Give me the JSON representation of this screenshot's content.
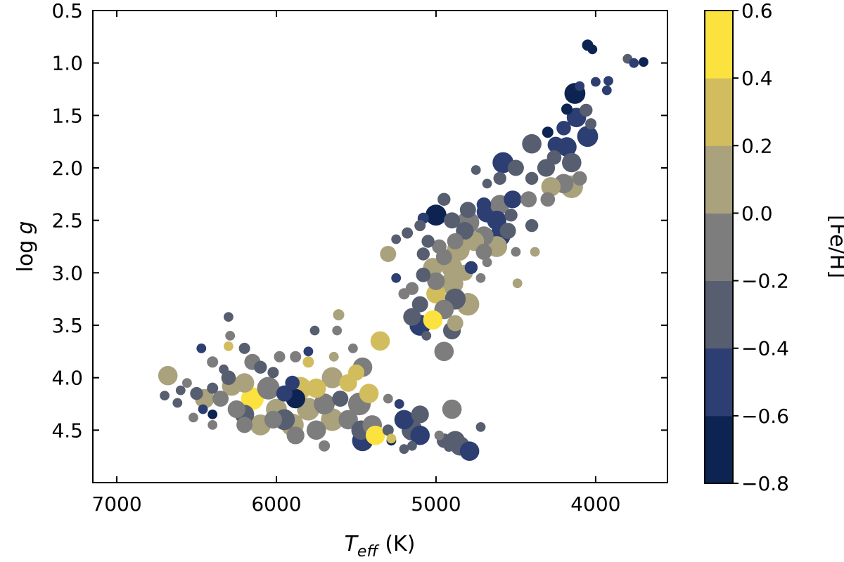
{
  "chart_data": {
    "type": "scatter",
    "title": "",
    "xlabel": {
      "main": "T",
      "sub": "eff",
      "unit": "(K)"
    },
    "ylabel": {
      "main": "log",
      "var": "g"
    },
    "xlim": [
      7150,
      3550
    ],
    "ylim": [
      0.5,
      5.0
    ],
    "x_inverted": true,
    "y_inverted": true,
    "xticks": [
      7000,
      6000,
      5000,
      4000
    ],
    "xtick_labels": [
      "7000",
      "6000",
      "5000",
      "4000"
    ],
    "yticks": [
      0.5,
      1.0,
      1.5,
      2.0,
      2.5,
      3.0,
      3.5,
      4.0,
      4.5
    ],
    "ytick_labels": [
      "0.5",
      "1.0",
      "1.5",
      "2.0",
      "2.5",
      "3.0",
      "3.5",
      "4.0",
      "4.5"
    ],
    "colorbar": {
      "label": "[Fe/H]",
      "vmin": -0.8,
      "vmax": 0.6,
      "ticks": [
        0.6,
        0.4,
        0.2,
        0.0,
        -0.2,
        -0.4,
        -0.6,
        -0.8
      ],
      "tick_labels": [
        "0.6",
        "0.4",
        "0.2",
        "0.0",
        "−0.2",
        "−0.4",
        "−0.6",
        "−0.8"
      ],
      "bins": [
        {
          "from": -0.8,
          "to": -0.6,
          "color": "#0d2452"
        },
        {
          "from": -0.6,
          "to": -0.4,
          "color": "#2c3e72"
        },
        {
          "from": -0.4,
          "to": -0.2,
          "color": "#565e6f"
        },
        {
          "from": -0.2,
          "to": 0.0,
          "color": "#7d7d7d"
        },
        {
          "from": 0.0,
          "to": 0.2,
          "color": "#a9a27c"
        },
        {
          "from": 0.2,
          "to": 0.4,
          "color": "#d2bd5e"
        },
        {
          "from": 0.4,
          "to": 0.6,
          "color": "#fbe23f"
        }
      ]
    },
    "point_size_range": [
      5,
      15
    ],
    "points": [
      {
        "teff": 4050,
        "logg": 0.83,
        "feh": -0.65,
        "size": 7
      },
      {
        "teff": 4020,
        "logg": 0.87,
        "feh": -0.62,
        "size": 6
      },
      {
        "teff": 3800,
        "logg": 0.96,
        "feh": -0.4,
        "size": 6
      },
      {
        "teff": 3760,
        "logg": 1.0,
        "feh": -0.55,
        "size": 6
      },
      {
        "teff": 3700,
        "logg": 0.99,
        "feh": -0.65,
        "size": 6
      },
      {
        "teff": 4000,
        "logg": 1.18,
        "feh": -0.6,
        "size": 6
      },
      {
        "teff": 4100,
        "logg": 1.22,
        "feh": -0.6,
        "size": 6
      },
      {
        "teff": 3920,
        "logg": 1.17,
        "feh": -0.55,
        "size": 6
      },
      {
        "teff": 3930,
        "logg": 1.26,
        "feh": -0.6,
        "size": 6
      },
      {
        "teff": 4130,
        "logg": 1.29,
        "feh": -0.75,
        "size": 13
      },
      {
        "teff": 4180,
        "logg": 1.44,
        "feh": -0.7,
        "size": 7
      },
      {
        "teff": 4120,
        "logg": 1.52,
        "feh": -0.5,
        "size": 12
      },
      {
        "teff": 4060,
        "logg": 1.45,
        "feh": -0.4,
        "size": 8
      },
      {
        "teff": 4030,
        "logg": 1.58,
        "feh": -0.3,
        "size": 7
      },
      {
        "teff": 4200,
        "logg": 1.62,
        "feh": -0.5,
        "size": 9
      },
      {
        "teff": 4050,
        "logg": 1.7,
        "feh": -0.55,
        "size": 13
      },
      {
        "teff": 4180,
        "logg": 1.8,
        "feh": -0.6,
        "size": 12
      },
      {
        "teff": 4250,
        "logg": 1.78,
        "feh": -0.55,
        "size": 10
      },
      {
        "teff": 4300,
        "logg": 1.66,
        "feh": -0.65,
        "size": 7
      },
      {
        "teff": 4260,
        "logg": 1.9,
        "feh": -0.3,
        "size": 9
      },
      {
        "teff": 4400,
        "logg": 1.77,
        "feh": -0.35,
        "size": 12
      },
      {
        "teff": 4310,
        "logg": 2.0,
        "feh": -0.25,
        "size": 11
      },
      {
        "teff": 4150,
        "logg": 1.95,
        "feh": -0.3,
        "size": 12
      },
      {
        "teff": 4100,
        "logg": 2.1,
        "feh": -0.2,
        "size": 9
      },
      {
        "teff": 4200,
        "logg": 2.15,
        "feh": -0.15,
        "size": 12
      },
      {
        "teff": 4280,
        "logg": 2.18,
        "feh": 0.05,
        "size": 12
      },
      {
        "teff": 4150,
        "logg": 2.18,
        "feh": 0.1,
        "size": 14
      },
      {
        "teff": 4300,
        "logg": 2.3,
        "feh": -0.1,
        "size": 9
      },
      {
        "teff": 4400,
        "logg": 2.1,
        "feh": -0.4,
        "size": 8
      },
      {
        "teff": 4500,
        "logg": 2.0,
        "feh": -0.25,
        "size": 10
      },
      {
        "teff": 4580,
        "logg": 1.95,
        "feh": -0.6,
        "size": 13
      },
      {
        "teff": 4600,
        "logg": 2.1,
        "feh": -0.35,
        "size": 8
      },
      {
        "teff": 4680,
        "logg": 2.15,
        "feh": -0.4,
        "size": 6
      },
      {
        "teff": 4750,
        "logg": 2.02,
        "feh": -0.3,
        "size": 6
      },
      {
        "teff": 4420,
        "logg": 2.3,
        "feh": -0.2,
        "size": 10
      },
      {
        "teff": 4520,
        "logg": 2.3,
        "feh": -0.45,
        "size": 11
      },
      {
        "teff": 4600,
        "logg": 2.35,
        "feh": -0.2,
        "size": 12
      },
      {
        "teff": 4700,
        "logg": 2.35,
        "feh": -0.45,
        "size": 9
      },
      {
        "teff": 4800,
        "logg": 2.4,
        "feh": -0.25,
        "size": 10
      },
      {
        "teff": 4680,
        "logg": 2.42,
        "feh": -0.6,
        "size": 13
      },
      {
        "teff": 4950,
        "logg": 2.3,
        "feh": -0.3,
        "size": 8
      },
      {
        "teff": 5000,
        "logg": 2.45,
        "feh": -0.75,
        "size": 13
      },
      {
        "teff": 5080,
        "logg": 2.48,
        "feh": -0.6,
        "size": 7
      },
      {
        "teff": 4900,
        "logg": 2.5,
        "feh": -0.4,
        "size": 10
      },
      {
        "teff": 4800,
        "logg": 2.52,
        "feh": -0.15,
        "size": 14
      },
      {
        "teff": 4620,
        "logg": 2.5,
        "feh": -0.55,
        "size": 12
      },
      {
        "teff": 4550,
        "logg": 2.6,
        "feh": -0.35,
        "size": 10
      },
      {
        "teff": 4530,
        "logg": 2.45,
        "feh": -0.3,
        "size": 8
      },
      {
        "teff": 4400,
        "logg": 2.55,
        "feh": -0.25,
        "size": 8
      },
      {
        "teff": 4600,
        "logg": 2.65,
        "feh": -0.5,
        "size": 13
      },
      {
        "teff": 4700,
        "logg": 2.65,
        "feh": -0.1,
        "size": 12
      },
      {
        "teff": 4620,
        "logg": 2.75,
        "feh": 0.15,
        "size": 13
      },
      {
        "teff": 4700,
        "logg": 2.8,
        "feh": -0.15,
        "size": 10
      },
      {
        "teff": 4760,
        "logg": 2.7,
        "feh": 0.1,
        "size": 12
      },
      {
        "teff": 4820,
        "logg": 2.6,
        "feh": -0.3,
        "size": 11
      },
      {
        "teff": 5100,
        "logg": 2.55,
        "feh": -0.35,
        "size": 7
      },
      {
        "teff": 5180,
        "logg": 2.62,
        "feh": -0.4,
        "size": 7
      },
      {
        "teff": 5250,
        "logg": 2.68,
        "feh": -0.3,
        "size": 6
      },
      {
        "teff": 5300,
        "logg": 2.82,
        "feh": 0.05,
        "size": 10
      },
      {
        "teff": 5050,
        "logg": 2.7,
        "feh": -0.4,
        "size": 8
      },
      {
        "teff": 4980,
        "logg": 2.75,
        "feh": -0.2,
        "size": 9
      },
      {
        "teff": 4880,
        "logg": 2.7,
        "feh": -0.05,
        "size": 10
      },
      {
        "teff": 4860,
        "logg": 2.78,
        "feh": 0.1,
        "size": 14
      },
      {
        "teff": 4950,
        "logg": 2.85,
        "feh": -0.15,
        "size": 10
      },
      {
        "teff": 5080,
        "logg": 2.82,
        "feh": -0.3,
        "size": 8
      },
      {
        "teff": 5020,
        "logg": 2.95,
        "feh": 0.05,
        "size": 12
      },
      {
        "teff": 4900,
        "logg": 2.95,
        "feh": 0.1,
        "size": 13
      },
      {
        "teff": 4780,
        "logg": 2.95,
        "feh": -0.45,
        "size": 8
      },
      {
        "teff": 4680,
        "logg": 2.9,
        "feh": -0.2,
        "size": 6
      },
      {
        "teff": 4380,
        "logg": 2.8,
        "feh": 0.15,
        "size": 6
      },
      {
        "teff": 4500,
        "logg": 2.8,
        "feh": -0.1,
        "size": 6
      },
      {
        "teff": 4820,
        "logg": 3.0,
        "feh": 0.05,
        "size": 10
      },
      {
        "teff": 4900,
        "logg": 3.1,
        "feh": 0.15,
        "size": 14
      },
      {
        "teff": 5000,
        "logg": 3.08,
        "feh": -0.2,
        "size": 11
      },
      {
        "teff": 5080,
        "logg": 3.02,
        "feh": -0.35,
        "size": 9
      },
      {
        "teff": 5150,
        "logg": 3.15,
        "feh": -0.2,
        "size": 8
      },
      {
        "teff": 5250,
        "logg": 3.05,
        "feh": -0.6,
        "size": 6
      },
      {
        "teff": 5000,
        "logg": 3.2,
        "feh": 0.2,
        "size": 12
      },
      {
        "teff": 4720,
        "logg": 3.05,
        "feh": -0.1,
        "size": 6
      },
      {
        "teff": 4490,
        "logg": 3.1,
        "feh": 0.15,
        "size": 6
      },
      {
        "teff": 4800,
        "logg": 3.3,
        "feh": 0.1,
        "size": 14
      },
      {
        "teff": 4880,
        "logg": 3.25,
        "feh": -0.4,
        "size": 13
      },
      {
        "teff": 4950,
        "logg": 3.35,
        "feh": -0.15,
        "size": 12
      },
      {
        "teff": 5100,
        "logg": 3.3,
        "feh": -0.25,
        "size": 10
      },
      {
        "teff": 5150,
        "logg": 3.42,
        "feh": -0.35,
        "size": 11
      },
      {
        "teff": 5020,
        "logg": 3.45,
        "feh": 0.4,
        "size": 12
      },
      {
        "teff": 5100,
        "logg": 3.5,
        "feh": -0.45,
        "size": 13
      },
      {
        "teff": 4900,
        "logg": 3.55,
        "feh": -0.3,
        "size": 11
      },
      {
        "teff": 4950,
        "logg": 3.75,
        "feh": -0.15,
        "size": 12
      },
      {
        "teff": 5060,
        "logg": 3.6,
        "feh": -0.35,
        "size": 6
      },
      {
        "teff": 4880,
        "logg": 3.48,
        "feh": 0.1,
        "size": 10
      },
      {
        "teff": 5200,
        "logg": 3.2,
        "feh": -0.15,
        "size": 7
      },
      {
        "teff": 6680,
        "logg": 3.98,
        "feh": 0.1,
        "size": 12
      },
      {
        "teff": 6700,
        "logg": 4.17,
        "feh": -0.4,
        "size": 6
      },
      {
        "teff": 6620,
        "logg": 4.24,
        "feh": -0.3,
        "size": 6
      },
      {
        "teff": 6600,
        "logg": 4.12,
        "feh": -0.35,
        "size": 6
      },
      {
        "teff": 6560,
        "logg": 4.05,
        "feh": -0.2,
        "size": 6
      },
      {
        "teff": 6500,
        "logg": 4.15,
        "feh": -0.4,
        "size": 8
      },
      {
        "teff": 6450,
        "logg": 4.2,
        "feh": 0.1,
        "size": 12
      },
      {
        "teff": 6400,
        "logg": 4.1,
        "feh": -0.3,
        "size": 7
      },
      {
        "teff": 6460,
        "logg": 4.3,
        "feh": -0.55,
        "size": 6
      },
      {
        "teff": 6400,
        "logg": 4.35,
        "feh": -0.65,
        "size": 6
      },
      {
        "teff": 6470,
        "logg": 3.72,
        "feh": -0.45,
        "size": 6
      },
      {
        "teff": 6400,
        "logg": 3.85,
        "feh": -0.2,
        "size": 7
      },
      {
        "teff": 6330,
        "logg": 3.92,
        "feh": -0.35,
        "size": 6
      },
      {
        "teff": 6300,
        "logg": 4.0,
        "feh": -0.25,
        "size": 9
      },
      {
        "teff": 6350,
        "logg": 4.2,
        "feh": -0.1,
        "size": 10
      },
      {
        "teff": 6280,
        "logg": 4.08,
        "feh": 0.05,
        "size": 12
      },
      {
        "teff": 6250,
        "logg": 4.3,
        "feh": -0.15,
        "size": 11
      },
      {
        "teff": 6300,
        "logg": 3.42,
        "feh": -0.3,
        "size": 6
      },
      {
        "teff": 6290,
        "logg": 3.6,
        "feh": -0.2,
        "size": 6
      },
      {
        "teff": 6300,
        "logg": 3.7,
        "feh": 0.2,
        "size": 6
      },
      {
        "teff": 6200,
        "logg": 3.72,
        "feh": -0.25,
        "size": 7
      },
      {
        "teff": 6150,
        "logg": 3.85,
        "feh": -0.1,
        "size": 10
      },
      {
        "teff": 6200,
        "logg": 4.05,
        "feh": 0.05,
        "size": 12
      },
      {
        "teff": 6150,
        "logg": 4.2,
        "feh": 0.4,
        "size": 14
      },
      {
        "teff": 6200,
        "logg": 4.35,
        "feh": -0.3,
        "size": 12
      },
      {
        "teff": 6100,
        "logg": 4.45,
        "feh": 0.1,
        "size": 13
      },
      {
        "teff": 6200,
        "logg": 4.45,
        "feh": -0.1,
        "size": 10
      },
      {
        "teff": 6100,
        "logg": 3.9,
        "feh": -0.3,
        "size": 8
      },
      {
        "teff": 6050,
        "logg": 4.1,
        "feh": -0.15,
        "size": 14
      },
      {
        "teff": 6000,
        "logg": 4.3,
        "feh": 0.05,
        "size": 13
      },
      {
        "teff": 6020,
        "logg": 4.4,
        "feh": -0.2,
        "size": 11
      },
      {
        "teff": 5950,
        "logg": 4.15,
        "feh": -0.45,
        "size": 10
      },
      {
        "teff": 5900,
        "logg": 4.05,
        "feh": -0.6,
        "size": 9
      },
      {
        "teff": 5880,
        "logg": 4.2,
        "feh": -0.75,
        "size": 12
      },
      {
        "teff": 5850,
        "logg": 4.1,
        "feh": 0.3,
        "size": 14
      },
      {
        "teff": 5950,
        "logg": 4.4,
        "feh": -0.25,
        "size": 13
      },
      {
        "teff": 5900,
        "logg": 4.45,
        "feh": 0.15,
        "size": 14
      },
      {
        "teff": 5880,
        "logg": 4.55,
        "feh": -0.1,
        "size": 11
      },
      {
        "teff": 5800,
        "logg": 4.3,
        "feh": 0.05,
        "size": 14
      },
      {
        "teff": 5750,
        "logg": 4.1,
        "feh": 0.2,
        "size": 12
      },
      {
        "teff": 5700,
        "logg": 4.25,
        "feh": -0.1,
        "size": 13
      },
      {
        "teff": 5750,
        "logg": 4.5,
        "feh": -0.05,
        "size": 12
      },
      {
        "teff": 5700,
        "logg": 4.65,
        "feh": -0.2,
        "size": 7
      },
      {
        "teff": 5650,
        "logg": 4.4,
        "feh": 0.1,
        "size": 14
      },
      {
        "teff": 5650,
        "logg": 4.0,
        "feh": 0.05,
        "size": 13
      },
      {
        "teff": 5600,
        "logg": 4.2,
        "feh": -0.35,
        "size": 10
      },
      {
        "teff": 5550,
        "logg": 4.4,
        "feh": -0.15,
        "size": 12
      },
      {
        "teff": 5550,
        "logg": 4.05,
        "feh": 0.25,
        "size": 11
      },
      {
        "teff": 5500,
        "logg": 3.95,
        "feh": 0.35,
        "size": 10
      },
      {
        "teff": 5480,
        "logg": 4.25,
        "feh": -0.05,
        "size": 14
      },
      {
        "teff": 5420,
        "logg": 4.15,
        "feh": 0.2,
        "size": 12
      },
      {
        "teff": 5460,
        "logg": 3.9,
        "feh": -0.2,
        "size": 12
      },
      {
        "teff": 5470,
        "logg": 4.5,
        "feh": -0.25,
        "size": 12
      },
      {
        "teff": 5400,
        "logg": 4.45,
        "feh": -0.1,
        "size": 12
      },
      {
        "teff": 5380,
        "logg": 4.55,
        "feh": 0.55,
        "size": 12
      },
      {
        "teff": 5350,
        "logg": 3.65,
        "feh": 0.3,
        "size": 12
      },
      {
        "teff": 5460,
        "logg": 4.6,
        "feh": -0.55,
        "size": 13
      },
      {
        "teff": 5300,
        "logg": 4.5,
        "feh": -0.4,
        "size": 7
      },
      {
        "teff": 5280,
        "logg": 4.6,
        "feh": -0.65,
        "size": 6
      },
      {
        "teff": 5610,
        "logg": 3.4,
        "feh": 0.15,
        "size": 7
      },
      {
        "teff": 5620,
        "logg": 3.55,
        "feh": -0.2,
        "size": 6
      },
      {
        "teff": 5640,
        "logg": 3.8,
        "feh": 0.1,
        "size": 6
      },
      {
        "teff": 5760,
        "logg": 3.55,
        "feh": -0.3,
        "size": 6
      },
      {
        "teff": 5800,
        "logg": 3.85,
        "feh": 0.2,
        "size": 7
      },
      {
        "teff": 5880,
        "logg": 3.8,
        "feh": -0.15,
        "size": 7
      },
      {
        "teff": 5980,
        "logg": 3.8,
        "feh": -0.2,
        "size": 7
      },
      {
        "teff": 6020,
        "logg": 3.95,
        "feh": -0.4,
        "size": 7
      },
      {
        "teff": 5800,
        "logg": 3.75,
        "feh": -0.55,
        "size": 6
      },
      {
        "teff": 5520,
        "logg": 3.72,
        "feh": -0.2,
        "size": 6
      },
      {
        "teff": 6400,
        "logg": 4.45,
        "feh": -0.1,
        "size": 6
      },
      {
        "teff": 6520,
        "logg": 4.38,
        "feh": -0.2,
        "size": 6
      },
      {
        "teff": 5200,
        "logg": 4.4,
        "feh": -0.45,
        "size": 12
      },
      {
        "teff": 5150,
        "logg": 4.5,
        "feh": -0.3,
        "size": 13
      },
      {
        "teff": 5100,
        "logg": 4.35,
        "feh": -0.35,
        "size": 11
      },
      {
        "teff": 5100,
        "logg": 4.55,
        "feh": -0.45,
        "size": 12
      },
      {
        "teff": 5150,
        "logg": 4.65,
        "feh": -0.25,
        "size": 6
      },
      {
        "teff": 5200,
        "logg": 4.68,
        "feh": -0.35,
        "size": 6
      },
      {
        "teff": 5230,
        "logg": 4.25,
        "feh": -0.5,
        "size": 6
      },
      {
        "teff": 5300,
        "logg": 4.2,
        "feh": -0.2,
        "size": 6
      },
      {
        "teff": 4900,
        "logg": 4.3,
        "feh": -0.15,
        "size": 12
      },
      {
        "teff": 4950,
        "logg": 4.6,
        "feh": -0.3,
        "size": 9
      },
      {
        "teff": 4880,
        "logg": 4.6,
        "feh": -0.25,
        "size": 12
      },
      {
        "teff": 4850,
        "logg": 4.65,
        "feh": -0.4,
        "size": 12
      },
      {
        "teff": 4790,
        "logg": 4.7,
        "feh": -0.45,
        "size": 12
      },
      {
        "teff": 4980,
        "logg": 4.55,
        "feh": -0.2,
        "size": 6
      },
      {
        "teff": 4720,
        "logg": 4.47,
        "feh": -0.4,
        "size": 6
      },
      {
        "teff": 4920,
        "logg": 4.66,
        "feh": -0.3,
        "size": 6
      },
      {
        "teff": 5280,
        "logg": 4.58,
        "feh": 0.2,
        "size": 6
      }
    ]
  }
}
